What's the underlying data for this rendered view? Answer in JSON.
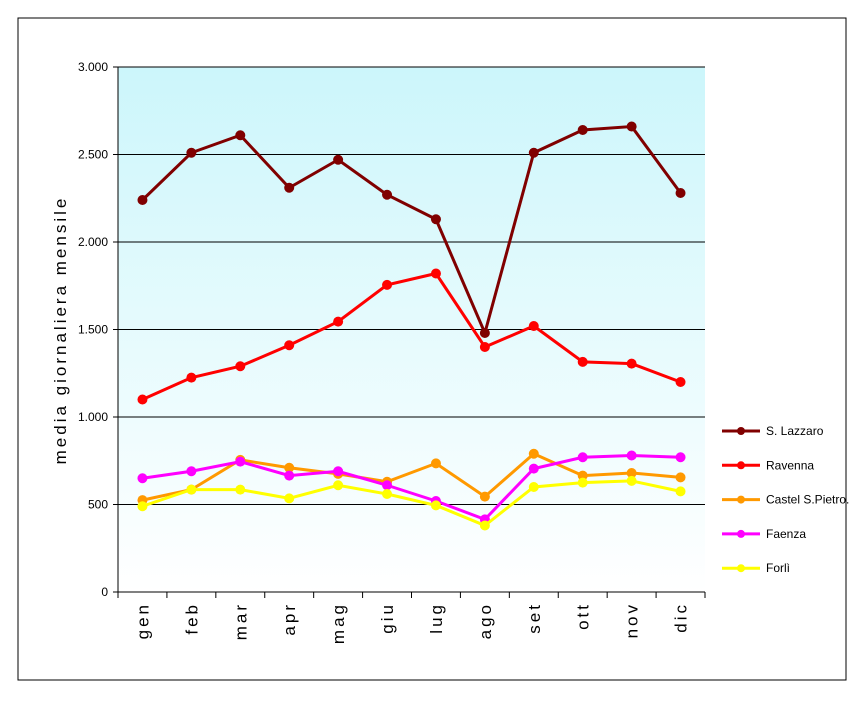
{
  "chart_data": {
    "type": "line",
    "y_label": "media giornaliera mensile",
    "categories": [
      "gen",
      "feb",
      "mar",
      "apr",
      "mag",
      "giu",
      "lug",
      "ago",
      "set",
      "ott",
      "nov",
      "dic"
    ],
    "series": [
      {
        "name": "S. Lazzaro",
        "color": "#800000",
        "values": [
          2240,
          2510,
          2610,
          2310,
          2470,
          2270,
          2130,
          1480,
          2510,
          2640,
          2660,
          2280
        ]
      },
      {
        "name": "Ravenna",
        "color": "#ff0000",
        "values": [
          1100,
          1225,
          1290,
          1410,
          1545,
          1755,
          1820,
          1400,
          1520,
          1315,
          1305,
          1200
        ]
      },
      {
        "name": "Castel S.Pietro.",
        "color": "#ff9900",
        "values": [
          525,
          585,
          755,
          710,
          675,
          630,
          735,
          545,
          790,
          665,
          680,
          655
        ]
      },
      {
        "name": "Faenza",
        "color": "#ff00ff",
        "values": [
          650,
          690,
          745,
          665,
          690,
          610,
          520,
          415,
          705,
          770,
          780,
          770
        ]
      },
      {
        "name": "Forlì",
        "color": "#ffff00",
        "values": [
          490,
          585,
          585,
          535,
          610,
          560,
          495,
          380,
          600,
          625,
          635,
          575
        ]
      }
    ],
    "ylim": [
      0,
      3000
    ],
    "yticks": [
      0,
      500,
      {
        "value": 1000,
        "label": "1.000"
      },
      {
        "value": 1500,
        "label": "1.500"
      },
      {
        "value": 2000,
        "label": "2.000"
      },
      {
        "value": 2500,
        "label": "2.500"
      },
      {
        "value": 3000,
        "label": "3.000"
      }
    ],
    "grid": true,
    "legend": "right"
  }
}
